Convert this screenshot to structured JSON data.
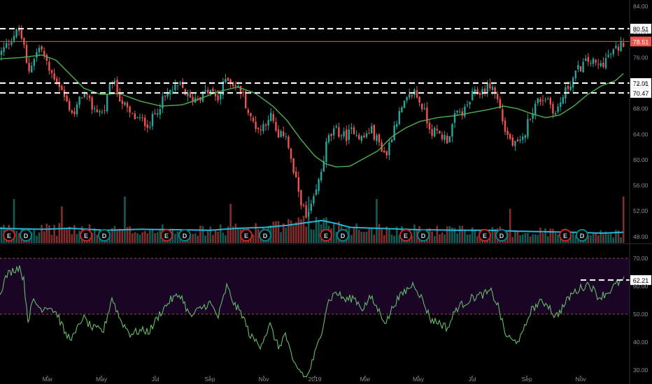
{
  "colors": {
    "background": "#000000",
    "up_candle": "#26a69a",
    "down_candle": "#ef5350",
    "sma": "#4caf50",
    "volume_ma": "#29b6d6",
    "rsi_line": "#66bb6a",
    "rsi_band": "#1a0526",
    "rsi_band_border": "#c87843",
    "levels": "#ffffff",
    "last_price": "#ef5350",
    "axis_text": "#8b8f98",
    "earnings_badge": "#c62828",
    "dividend_badge": "#00838f"
  },
  "price_axis": {
    "ticks": [
      "84.00",
      "80.00",
      "76.00",
      "72.00",
      "68.00",
      "64.00",
      "60.00",
      "56.00",
      "52.00",
      "48.00"
    ]
  },
  "rsi_axis": {
    "ticks": [
      "70.00",
      "60.00",
      "50.00",
      "40.00",
      "30.00"
    ]
  },
  "time_axis": {
    "labels": [
      "Mar",
      "May",
      "Jul",
      "Sep",
      "Nov",
      "2019",
      "Mar",
      "May",
      "Jul",
      "Sep",
      "Nov"
    ]
  },
  "horizontal_levels": [
    "80.51",
    "72.01",
    "70.47"
  ],
  "last_price_label": "78.51",
  "rsi_last_label": "62.21",
  "event_badges": [
    "E",
    "D",
    "E",
    "D",
    "E",
    "D",
    "E",
    "D",
    "E",
    "D",
    "E",
    "D",
    "E",
    "D",
    "E",
    "D"
  ],
  "chart_data": {
    "type": "candlestick",
    "price_range": [
      47,
      85
    ],
    "rsi_range": [
      25,
      75
    ],
    "horizontal_levels": [
      80.51,
      72.01,
      70.47
    ],
    "last_price": 78.51,
    "rsi_bands": [
      70,
      50
    ],
    "price_anchors": [
      [
        0,
        76.5
      ],
      [
        10,
        78.0
      ],
      [
        20,
        79.6
      ],
      [
        27,
        80.2
      ],
      [
        33,
        78.4
      ],
      [
        40,
        73.5
      ],
      [
        48,
        76.0
      ],
      [
        58,
        77.8
      ],
      [
        70,
        74.0
      ],
      [
        82,
        72.4
      ],
      [
        95,
        69.0
      ],
      [
        106,
        67.0
      ],
      [
        118,
        70.6
      ],
      [
        132,
        68.2
      ],
      [
        148,
        67.3
      ],
      [
        160,
        72.6
      ],
      [
        172,
        69.6
      ],
      [
        186,
        67.0
      ],
      [
        200,
        66.2
      ],
      [
        214,
        65.6
      ],
      [
        228,
        68.6
      ],
      [
        243,
        70.6
      ],
      [
        258,
        71.6
      ],
      [
        272,
        69.4
      ],
      [
        286,
        70.0
      ],
      [
        300,
        70.8
      ],
      [
        312,
        69.4
      ],
      [
        324,
        73.2
      ],
      [
        336,
        71.6
      ],
      [
        346,
        70.6
      ],
      [
        358,
        66.4
      ],
      [
        372,
        64.6
      ],
      [
        386,
        67.2
      ],
      [
        398,
        63.2
      ],
      [
        408,
        64.6
      ],
      [
        418,
        58.6
      ],
      [
        428,
        54.6
      ],
      [
        438,
        50.6
      ],
      [
        448,
        53.4
      ],
      [
        458,
        57.6
      ],
      [
        468,
        63.2
      ],
      [
        480,
        64.6
      ],
      [
        494,
        63.6
      ],
      [
        506,
        64.8
      ],
      [
        518,
        63.2
      ],
      [
        530,
        64.8
      ],
      [
        542,
        62.6
      ],
      [
        552,
        60.6
      ],
      [
        564,
        65.6
      ],
      [
        578,
        68.6
      ],
      [
        592,
        70.8
      ],
      [
        604,
        68.2
      ],
      [
        616,
        64.6
      ],
      [
        628,
        64.0
      ],
      [
        640,
        63.2
      ],
      [
        652,
        67.2
      ],
      [
        664,
        67.6
      ],
      [
        676,
        70.2
      ],
      [
        690,
        70.8
      ],
      [
        702,
        71.8
      ],
      [
        712,
        69.2
      ],
      [
        722,
        64.6
      ],
      [
        734,
        62.2
      ],
      [
        746,
        62.6
      ],
      [
        758,
        67.2
      ],
      [
        770,
        69.4
      ],
      [
        782,
        69.8
      ],
      [
        794,
        67.2
      ],
      [
        806,
        70.2
      ],
      [
        816,
        72.2
      ],
      [
        828,
        74.4
      ],
      [
        842,
        75.6
      ],
      [
        856,
        74.6
      ],
      [
        870,
        76.2
      ],
      [
        882,
        77.4
      ],
      [
        892,
        78.5
      ]
    ],
    "sma_anchors": [
      [
        0,
        75.8
      ],
      [
        30,
        76.0
      ],
      [
        60,
        76.4
      ],
      [
        80,
        75.6
      ],
      [
        100,
        73.4
      ],
      [
        120,
        71.2
      ],
      [
        145,
        70.2
      ],
      [
        170,
        70.4
      ],
      [
        200,
        69.2
      ],
      [
        230,
        68.4
      ],
      [
        260,
        68.6
      ],
      [
        285,
        69.5
      ],
      [
        310,
        70.6
      ],
      [
        340,
        71.4
      ],
      [
        365,
        70.4
      ],
      [
        390,
        68.4
      ],
      [
        410,
        66.2
      ],
      [
        430,
        63.2
      ],
      [
        450,
        60.6
      ],
      [
        465,
        59.4
      ],
      [
        480,
        58.9
      ],
      [
        500,
        59.0
      ],
      [
        520,
        60.2
      ],
      [
        540,
        61.4
      ],
      [
        560,
        63.6
      ],
      [
        580,
        65.0
      ],
      [
        600,
        66.0
      ],
      [
        625,
        66.6
      ],
      [
        650,
        66.9
      ],
      [
        675,
        67.4
      ],
      [
        700,
        67.9
      ],
      [
        720,
        68.4
      ],
      [
        740,
        68.0
      ],
      [
        760,
        67.2
      ],
      [
        780,
        66.6
      ],
      [
        800,
        67.0
      ],
      [
        820,
        68.4
      ],
      [
        840,
        70.2
      ],
      [
        860,
        71.6
      ],
      [
        880,
        72.4
      ],
      [
        892,
        73.6
      ]
    ],
    "volume_ma_anchors": [
      [
        0,
        0.3
      ],
      [
        60,
        0.28
      ],
      [
        100,
        0.3
      ],
      [
        150,
        0.26
      ],
      [
        200,
        0.28
      ],
      [
        260,
        0.27
      ],
      [
        300,
        0.26
      ],
      [
        340,
        0.3
      ],
      [
        380,
        0.32
      ],
      [
        410,
        0.36
      ],
      [
        440,
        0.42
      ],
      [
        460,
        0.46
      ],
      [
        480,
        0.4
      ],
      [
        500,
        0.32
      ],
      [
        540,
        0.3
      ],
      [
        600,
        0.27
      ],
      [
        660,
        0.26
      ],
      [
        700,
        0.26
      ],
      [
        740,
        0.24
      ],
      [
        780,
        0.23
      ],
      [
        820,
        0.22
      ],
      [
        860,
        0.2
      ],
      [
        892,
        0.22
      ]
    ],
    "volume_spikes": [
      [
        20,
        0.9
      ],
      [
        90,
        0.75
      ],
      [
        178,
        0.95
      ],
      [
        330,
        0.8
      ],
      [
        440,
        0.95
      ],
      [
        540,
        0.9
      ],
      [
        730,
        0.7
      ],
      [
        892,
        0.95
      ]
    ],
    "rsi_anchors": [
      [
        0,
        58
      ],
      [
        10,
        64
      ],
      [
        20,
        66
      ],
      [
        28,
        67
      ],
      [
        34,
        62
      ],
      [
        40,
        48
      ],
      [
        48,
        55
      ],
      [
        58,
        52
      ],
      [
        70,
        53
      ],
      [
        82,
        50
      ],
      [
        95,
        42
      ],
      [
        106,
        42
      ],
      [
        118,
        49
      ],
      [
        132,
        45
      ],
      [
        148,
        44
      ],
      [
        160,
        56
      ],
      [
        172,
        48
      ],
      [
        186,
        43
      ],
      [
        200,
        44
      ],
      [
        214,
        44
      ],
      [
        228,
        50
      ],
      [
        243,
        55
      ],
      [
        258,
        57
      ],
      [
        272,
        49
      ],
      [
        286,
        52
      ],
      [
        300,
        54
      ],
      [
        312,
        49
      ],
      [
        324,
        60
      ],
      [
        336,
        53
      ],
      [
        346,
        50
      ],
      [
        358,
        42
      ],
      [
        372,
        39
      ],
      [
        386,
        46
      ],
      [
        398,
        38
      ],
      [
        408,
        43
      ],
      [
        418,
        33
      ],
      [
        428,
        30
      ],
      [
        438,
        27
      ],
      [
        448,
        34
      ],
      [
        458,
        42
      ],
      [
        468,
        54
      ],
      [
        480,
        58
      ],
      [
        494,
        55
      ],
      [
        506,
        56
      ],
      [
        518,
        52
      ],
      [
        530,
        56
      ],
      [
        542,
        51
      ],
      [
        552,
        47
      ],
      [
        564,
        54
      ],
      [
        578,
        58
      ],
      [
        592,
        61
      ],
      [
        604,
        55
      ],
      [
        616,
        48
      ],
      [
        628,
        47
      ],
      [
        640,
        45
      ],
      [
        652,
        52
      ],
      [
        664,
        54
      ],
      [
        676,
        56
      ],
      [
        690,
        57
      ],
      [
        702,
        58
      ],
      [
        712,
        53
      ],
      [
        722,
        43
      ],
      [
        734,
        40
      ],
      [
        746,
        42
      ],
      [
        758,
        51
      ],
      [
        770,
        54
      ],
      [
        782,
        54
      ],
      [
        794,
        49
      ],
      [
        806,
        53
      ],
      [
        816,
        57
      ],
      [
        828,
        59
      ],
      [
        842,
        61
      ],
      [
        856,
        56
      ],
      [
        870,
        58
      ],
      [
        882,
        61
      ],
      [
        892,
        62.2
      ]
    ],
    "time_label_positions": [
      68,
      145,
      222,
      300,
      377,
      450,
      522,
      598,
      675,
      753,
      830
    ],
    "event_positions": [
      13,
      37,
      123,
      149,
      238,
      264,
      352,
      379,
      466,
      490,
      580,
      605,
      693,
      717,
      808,
      832
    ]
  }
}
